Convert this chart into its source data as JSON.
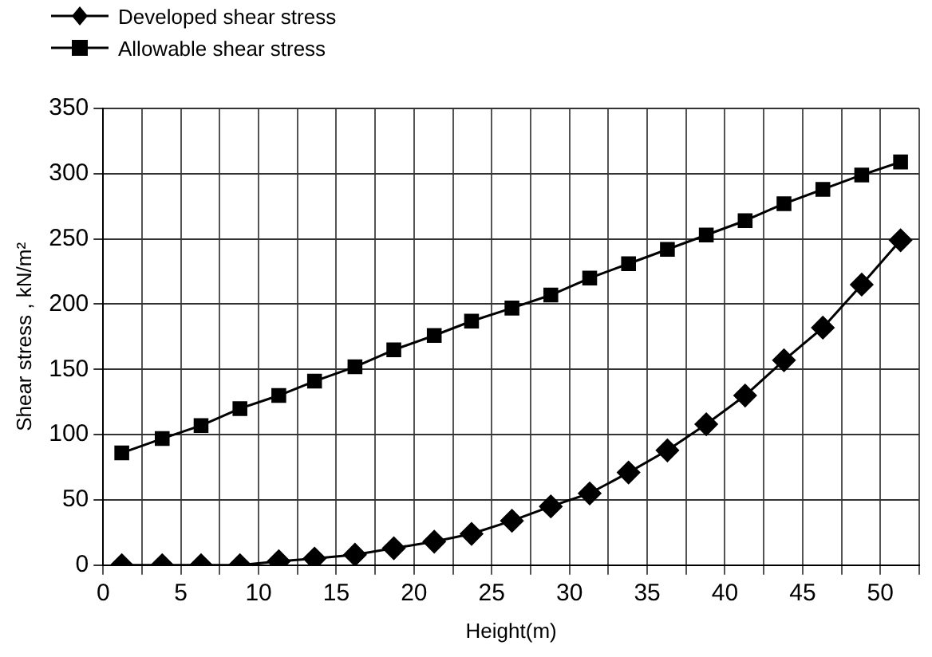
{
  "chart_data": {
    "type": "line",
    "xlabel": "Height(m)",
    "ylabel": "Shear stress , kN/m²",
    "x": [
      1.2,
      3.8,
      6.3,
      8.8,
      11.3,
      13.6,
      16.2,
      18.7,
      21.3,
      23.7,
      26.3,
      28.8,
      31.3,
      33.8,
      36.3,
      38.8,
      41.3,
      43.8,
      46.3,
      48.8,
      51.3
    ],
    "series": [
      {
        "name": "Developed shear stress",
        "color": "#000000",
        "marker": "diamond",
        "values": [
          0,
          0,
          0,
          0,
          3,
          5,
          8,
          13,
          18,
          24,
          34,
          45,
          55,
          71,
          88,
          108,
          130,
          157,
          182,
          215,
          249
        ]
      },
      {
        "name": "Allowable shear stress",
        "color": "#000000",
        "marker": "square",
        "values": [
          86,
          97,
          107,
          120,
          130,
          141,
          152,
          165,
          176,
          187,
          197,
          207,
          220,
          231,
          242,
          253,
          264,
          277,
          288,
          299,
          309
        ]
      }
    ],
    "xlim": [
      0,
      52.5
    ],
    "xticks": [
      0,
      {
        "value": 2.5,
        "label": null
      },
      5,
      {
        "value": 7.5,
        "label": null
      },
      10,
      {
        "value": 12.5,
        "label": null
      },
      15,
      {
        "value": 17.5,
        "label": null
      },
      20,
      {
        "value": 22.5,
        "label": null
      },
      25,
      {
        "value": 27.5,
        "label": null
      },
      30,
      {
        "value": 32.5,
        "label": null
      },
      35,
      {
        "value": 37.5,
        "label": null
      },
      40,
      {
        "value": 42.5,
        "label": null
      },
      45,
      {
        "value": 47.5,
        "label": null
      },
      50,
      {
        "value": 52.5,
        "label": null
      }
    ],
    "ylim": [
      0,
      350
    ],
    "yticks": [
      0,
      50,
      100,
      150,
      200,
      250,
      300,
      350
    ],
    "grid": true,
    "legend": "top left",
    "line_style": "solid"
  }
}
